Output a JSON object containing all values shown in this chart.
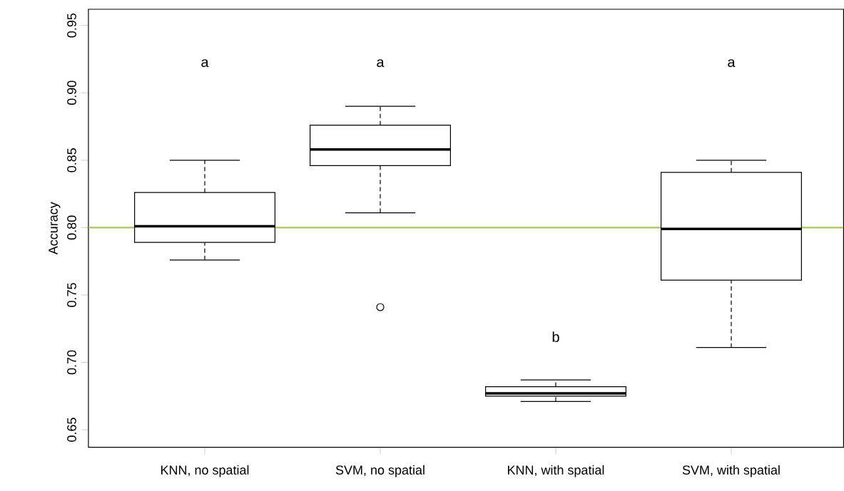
{
  "chart_data": {
    "type": "box",
    "ylabel": "Accuracy",
    "categories": [
      "KNN, no spatial",
      "SVM, no spatial",
      "KNN, with spatial",
      "SVM, with spatial"
    ],
    "boxes": [
      {
        "low": 0.776,
        "q1": 0.789,
        "median": 0.801,
        "q3": 0.826,
        "high": 0.85
      },
      {
        "low": 0.811,
        "q1": 0.846,
        "median": 0.858,
        "q3": 0.876,
        "high": 0.89,
        "outliers": [
          0.741
        ]
      },
      {
        "low": 0.671,
        "q1": 0.675,
        "median": 0.677,
        "q3": 0.682,
        "high": 0.687
      },
      {
        "low": 0.711,
        "q1": 0.761,
        "median": 0.799,
        "q3": 0.841,
        "high": 0.85
      }
    ],
    "color": "#000000",
    "ylim": [
      0.637,
      0.962
    ],
    "yticks": [
      0.65,
      {
        "value": 0.7,
        "label": "0.70"
      },
      0.75,
      {
        "value": 0.8,
        "label": "0.80"
      },
      0.85,
      {
        "value": 0.9,
        "label": "0.90"
      },
      0.95
    ],
    "ref_lines": [
      {
        "axis": "y",
        "value": 0.8,
        "color": "#a8c65a"
      }
    ],
    "annotations": [
      "a",
      "a",
      "b",
      "a"
    ],
    "grid": false
  }
}
